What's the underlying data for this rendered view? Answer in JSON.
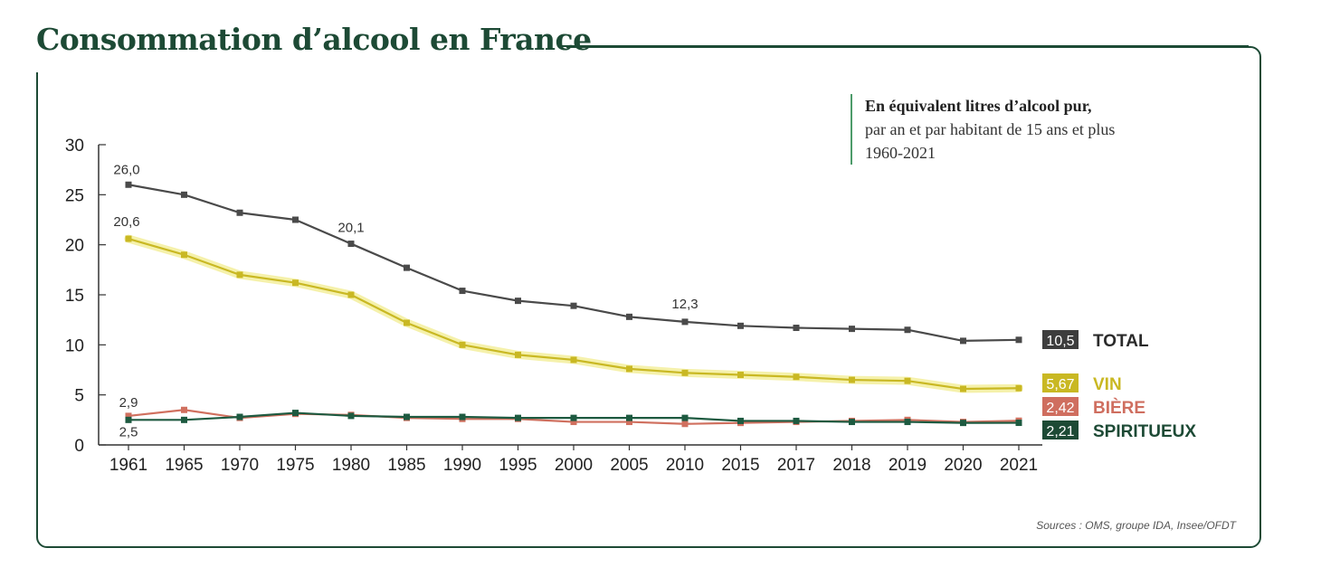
{
  "header": {
    "title": "Consommation d’alcool en France"
  },
  "note": {
    "line1": "En équivalent litres d’alcool pur,",
    "line2": "par an et par habitant de 15 ans et plus",
    "line3": "1960-2021"
  },
  "source": "Sources : OMS, groupe IDA, Insee/OFDT",
  "colors": {
    "total": "#4a4a4a",
    "vin": "#c9b823",
    "vin_glow": "#f3ef9c",
    "biere": "#d0705f",
    "spiritueux": "#1d5a40",
    "frame": "#1d4a35"
  },
  "chart_data": {
    "type": "line",
    "title": "Consommation d’alcool en France",
    "ylim": [
      0,
      30
    ],
    "yticks": [
      "0",
      "5",
      "10",
      "15",
      "20",
      "25",
      "30"
    ],
    "categories": [
      "1961",
      "1965",
      "1970",
      "1975",
      "1980",
      "1985",
      "1990",
      "1995",
      "2000",
      "2005",
      "2010",
      "2015",
      "2017",
      "2018",
      "2019",
      "2020",
      "2021"
    ],
    "series": [
      {
        "key": "total",
        "name": "TOTAL",
        "end_label": "10,5",
        "values": [
          26.0,
          25.0,
          23.2,
          22.5,
          20.1,
          17.7,
          15.4,
          14.4,
          13.9,
          12.8,
          12.3,
          11.9,
          11.7,
          11.6,
          11.5,
          10.4,
          10.5
        ]
      },
      {
        "key": "vin",
        "name": "VIN",
        "end_label": "5,67",
        "values": [
          20.6,
          19.0,
          17.0,
          16.2,
          15.0,
          12.2,
          10.0,
          9.0,
          8.5,
          7.6,
          7.2,
          7.0,
          6.8,
          6.5,
          6.4,
          5.6,
          5.67
        ]
      },
      {
        "key": "biere",
        "name": "BIÈRE",
        "end_label": "2,42",
        "values": [
          2.9,
          3.5,
          2.7,
          3.1,
          3.0,
          2.7,
          2.6,
          2.6,
          2.3,
          2.3,
          2.1,
          2.2,
          2.3,
          2.4,
          2.5,
          2.3,
          2.42
        ]
      },
      {
        "key": "spiritueux",
        "name": "SPIRITUEUX",
        "end_label": "2,21",
        "values": [
          2.5,
          2.5,
          2.8,
          3.2,
          2.9,
          2.8,
          2.8,
          2.7,
          2.7,
          2.7,
          2.7,
          2.4,
          2.4,
          2.3,
          2.3,
          2.2,
          2.21
        ]
      }
    ],
    "annotations": [
      {
        "series": "total",
        "x": "1961",
        "text": "26,0"
      },
      {
        "series": "total",
        "x": "1980",
        "text": "20,1"
      },
      {
        "series": "total",
        "x": "2010",
        "text": "12,3"
      },
      {
        "series": "vin",
        "x": "1961",
        "text": "20,6"
      },
      {
        "series": "biere",
        "x": "1961",
        "text": "2,9"
      },
      {
        "series": "spiritueux",
        "x": "1961",
        "text": "2,5"
      }
    ],
    "grid": false,
    "legend": "right"
  }
}
